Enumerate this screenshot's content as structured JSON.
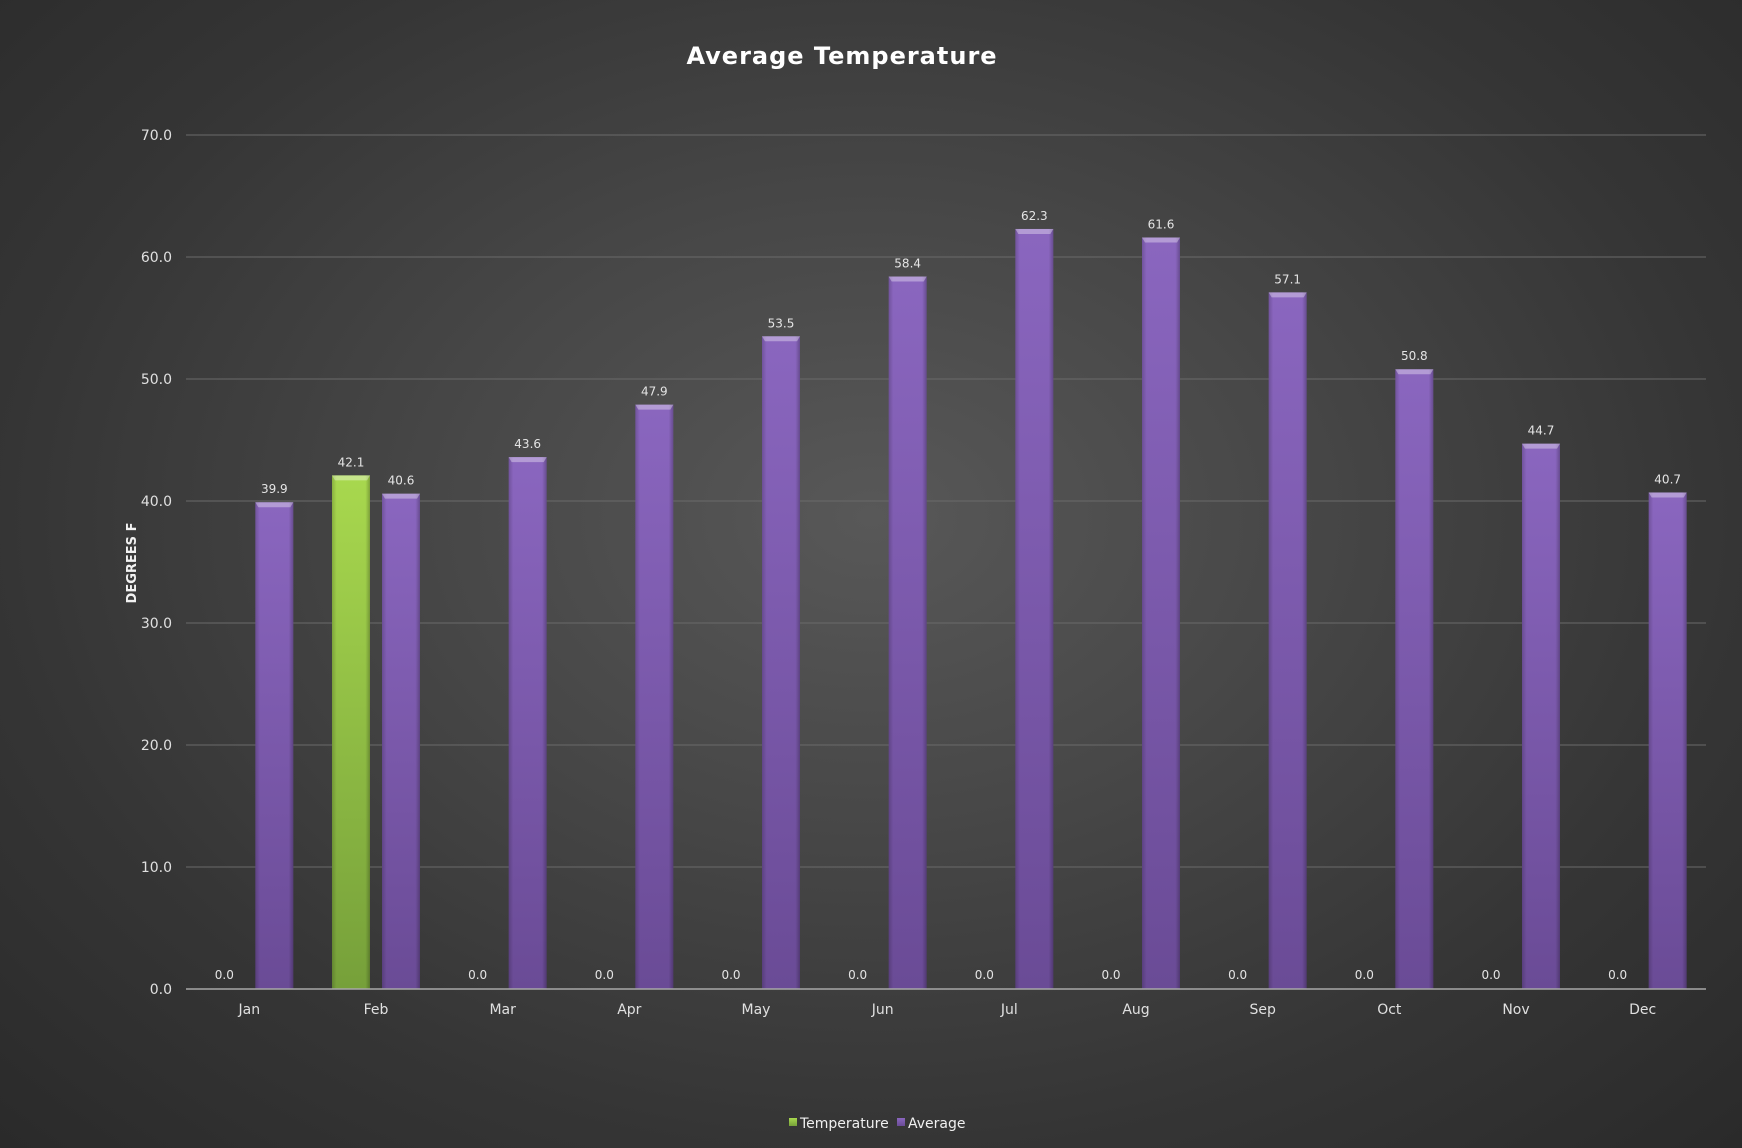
{
  "chart_data": {
    "type": "bar",
    "title": "Average Temperature",
    "xlabel": "",
    "ylabel": "DEGREES F",
    "ylim": [
      0,
      70
    ],
    "yticks": [
      "0.0",
      "10.0",
      "20.0",
      "30.0",
      "40.0",
      "50.0",
      "60.0",
      "70.0"
    ],
    "grid": true,
    "legend_position": "bottom",
    "categories": [
      "Jan",
      "Feb",
      "Mar",
      "Apr",
      "May",
      "Jun",
      "Jul",
      "Aug",
      "Sep",
      "Oct",
      "Nov",
      "Dec"
    ],
    "series": [
      {
        "name": "Temperature",
        "color": "#92c83e",
        "values": [
          0.0,
          42.1,
          null,
          0.0,
          0.0,
          0.0,
          0.0,
          0.0,
          0.0,
          0.0,
          0.0,
          0.0
        ],
        "labels": [
          "0.0",
          "42.1",
          "0.0",
          "0.0",
          "0.0",
          "0.0",
          "0.0",
          "0.0",
          "0.0",
          "0.0",
          "0.0",
          "0.0"
        ]
      },
      {
        "name": "Average",
        "color": "#8060b0",
        "values": [
          39.9,
          40.6,
          43.6,
          47.9,
          53.5,
          58.4,
          62.3,
          61.6,
          57.1,
          50.8,
          44.7,
          40.7
        ],
        "labels": [
          "39.9",
          "40.6",
          "43.6",
          "47.9",
          "53.5",
          "58.4",
          "62.3",
          "61.6",
          "57.1",
          "50.8",
          "44.7",
          "40.7"
        ]
      }
    ]
  }
}
